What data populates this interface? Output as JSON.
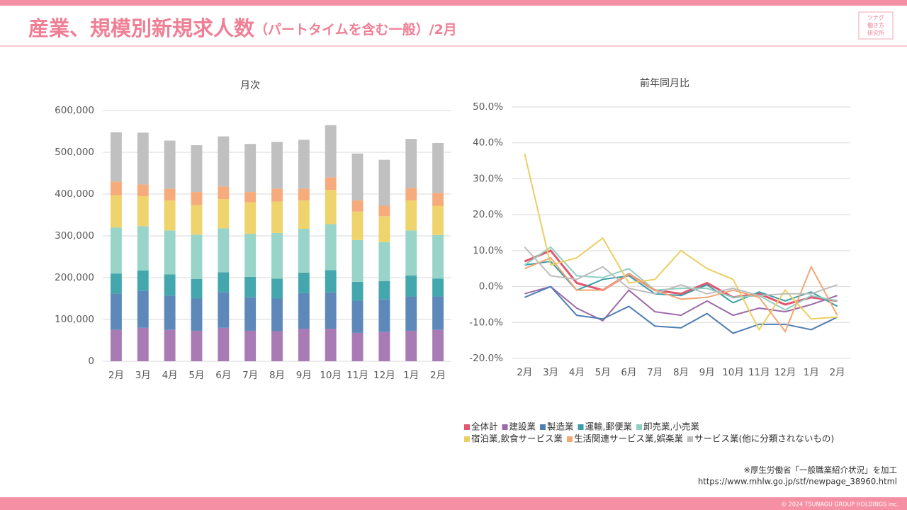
{
  "header": {
    "title": "産業、規模別新規求人数",
    "subtitle": "（パートタイムを含む一般）/2月",
    "logo": [
      "ツナグ",
      "働き方",
      "研究所"
    ]
  },
  "chart_data": [
    {
      "type": "stacked-bar",
      "title": "月次",
      "categories": [
        "2月",
        "3月",
        "4月",
        "5月",
        "6月",
        "7月",
        "8月",
        "9月",
        "10月",
        "11月",
        "12月",
        "1月",
        "2月"
      ],
      "series": [
        {
          "color": "#a97bb5",
          "values": [
            75000,
            80000,
            75000,
            73000,
            80000,
            73000,
            72000,
            78000,
            78000,
            68000,
            70000,
            73000,
            75000
          ]
        },
        {
          "color": "#5e88ba",
          "values": [
            87000,
            88000,
            82000,
            77000,
            85000,
            80000,
            78000,
            85000,
            87000,
            77000,
            78000,
            82000,
            80000
          ]
        },
        {
          "color": "#45a7ae",
          "values": [
            48000,
            49000,
            51000,
            47000,
            48000,
            49000,
            48000,
            49000,
            53000,
            45000,
            44000,
            50000,
            43000
          ]
        },
        {
          "color": "#98d4c7",
          "values": [
            110000,
            106000,
            105000,
            106000,
            105000,
            103000,
            109000,
            105000,
            110000,
            100000,
            93000,
            108000,
            104000
          ]
        },
        {
          "color": "#efd36d",
          "values": [
            77000,
            72000,
            72000,
            71000,
            70000,
            75000,
            75000,
            68000,
            82000,
            68000,
            62000,
            72000,
            70000
          ]
        },
        {
          "color": "#f5ab7c",
          "values": [
            33000,
            28000,
            28000,
            31000,
            30000,
            25000,
            31000,
            28000,
            30000,
            27000,
            25000,
            30000,
            31000
          ]
        },
        {
          "color": "#c0c0c0",
          "values": [
            118000,
            124000,
            115000,
            112000,
            120000,
            115000,
            112000,
            117000,
            125000,
            112000,
            110000,
            117000,
            119000
          ]
        }
      ],
      "ylim": [
        0,
        600000
      ],
      "yticks": [
        0,
        {
          "value": 100000,
          "label": "100,000"
        },
        {
          "value": 200000,
          "label": "200,000"
        },
        {
          "value": 300000,
          "label": "300,000"
        },
        {
          "value": 400000,
          "label": "400,000"
        },
        {
          "value": 500000,
          "label": "500,000"
        },
        {
          "value": 600000,
          "label": "600,000"
        }
      ],
      "grid": true
    },
    {
      "type": "line",
      "title": "前年同月比",
      "categories": [
        "2月",
        "3月",
        "4月",
        "5月",
        "6月",
        "7月",
        "8月",
        "9月",
        "10月",
        "11月",
        "12月",
        "1月",
        "2月"
      ],
      "series": [
        {
          "name": "全体計",
          "color": "#e25670",
          "values": [
            7,
            10,
            1,
            -1,
            3.5,
            -1,
            -2,
            1,
            -3,
            -2,
            -5,
            -3,
            -4
          ]
        },
        {
          "name": "建設業",
          "color": "#9b6aa8",
          "values": [
            -2,
            0,
            -6,
            -9.5,
            -1,
            -7,
            -8,
            -4,
            -8,
            -6,
            -7,
            -5,
            -2.5
          ]
        },
        {
          "name": "製造業",
          "color": "#4f7eb3",
          "values": [
            -3,
            0,
            -8,
            -9,
            -5.5,
            -11,
            -11.5,
            -7.5,
            -13,
            -10.5,
            -10.5,
            -12,
            -8.5
          ]
        },
        {
          "name": "運輸,郵便業",
          "color": "#3a9ea8",
          "values": [
            6,
            7,
            -1,
            2,
            3,
            -2,
            -2.5,
            0.5,
            -4.5,
            -1.5,
            -4,
            -1.5,
            -5.5
          ]
        },
        {
          "name": "卸売業,小売業",
          "color": "#8fcfc1",
          "values": [
            6,
            11,
            3,
            2.5,
            5,
            -1,
            -0.5,
            -0.5,
            -3,
            -2.5,
            -6.5,
            -2.5,
            -4
          ]
        },
        {
          "name": "宿泊業,飲食サービス業",
          "color": "#ebcf62",
          "values": [
            37,
            6,
            8,
            13.5,
            1,
            2,
            10,
            5,
            2,
            -12,
            -1,
            -9,
            -8.5
          ]
        },
        {
          "name": "生活関連サービス業,娯楽業",
          "color": "#f4a673",
          "values": [
            5,
            8,
            -1,
            -1,
            3.5,
            -1,
            -3.5,
            -3,
            -1,
            -3,
            -12.5,
            5.5,
            -8
          ]
        },
        {
          "name": "サービス業(他に分類されないもの)",
          "color": "#bdbdbd",
          "values": [
            11,
            3,
            2,
            5.5,
            -0.5,
            -2,
            0.5,
            -2,
            -0.5,
            -2.5,
            -2,
            -2,
            0.5
          ]
        }
      ],
      "ylim": [
        -20,
        50
      ],
      "yticks": [
        {
          "value": -20,
          "label": "-20.0%"
        },
        {
          "value": -10,
          "label": "-10.0%"
        },
        {
          "value": 0,
          "label": "0.0%"
        },
        {
          "value": 10,
          "label": "10.0%"
        },
        {
          "value": 20,
          "label": "20.0%"
        },
        {
          "value": 30,
          "label": "30.0%"
        },
        {
          "value": 40,
          "label": "40.0%"
        },
        {
          "value": 50,
          "label": "50.0%"
        }
      ],
      "grid": true
    }
  ],
  "source": [
    "※厚生労働省「一般職業紹介状況」を加工",
    "https://www.mhlw.go.jp/stf/newpage_38960.html"
  ],
  "footer": "© 2024 TSUNAGU GROUP HOLDINGS inc."
}
